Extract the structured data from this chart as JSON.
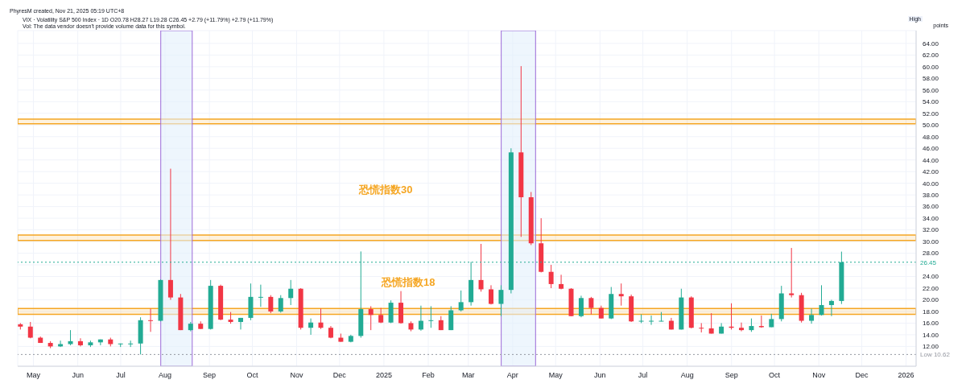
{
  "chart_data": {
    "type": "candlestick",
    "title": "VIX · Volatility S&P 500 Index · 1D  O20.78 H28.27 L19.28 C26.45 +2.79 (+11.79%) +2.79 (+11.79%)",
    "subtitle": "Vol: The data vendor doesn't provide volume data for this symbol.",
    "ylabel": "points",
    "x": [
      "2024-04-22",
      "2024-04-29",
      "2024-05-06",
      "2024-05-13",
      "2024-05-20",
      "2024-05-27",
      "2024-06-03",
      "2024-06-10",
      "2024-06-17",
      "2024-06-24",
      "2024-07-01",
      "2024-07-08",
      "2024-07-15",
      "2024-07-22",
      "2024-07-29",
      "2024-08-05",
      "2024-08-12",
      "2024-08-19",
      "2024-08-26",
      "2024-09-02",
      "2024-09-09",
      "2024-09-16",
      "2024-09-23",
      "2024-09-30",
      "2024-10-07",
      "2024-10-14",
      "2024-10-21",
      "2024-10-28",
      "2024-11-04",
      "2024-11-11",
      "2024-11-18",
      "2024-11-25",
      "2024-12-02",
      "2024-12-09",
      "2024-12-16",
      "2024-12-23",
      "2024-12-30",
      "2025-01-06",
      "2025-01-13",
      "2025-01-20",
      "2025-01-27",
      "2025-02-03",
      "2025-02-10",
      "2025-02-17",
      "2025-02-24",
      "2025-03-03",
      "2025-03-10",
      "2025-03-17",
      "2025-03-24",
      "2025-03-31",
      "2025-04-07",
      "2025-04-14",
      "2025-04-21",
      "2025-04-28",
      "2025-05-05",
      "2025-05-12",
      "2025-05-19",
      "2025-05-26",
      "2025-06-02",
      "2025-06-09",
      "2025-06-16",
      "2025-06-23",
      "2025-06-30",
      "2025-07-07",
      "2025-07-14",
      "2025-07-21",
      "2025-07-28",
      "2025-08-04",
      "2025-08-11",
      "2025-08-18",
      "2025-08-25",
      "2025-09-01",
      "2025-09-08",
      "2025-09-15",
      "2025-09-22",
      "2025-09-29",
      "2025-10-06",
      "2025-10-13",
      "2025-10-20",
      "2025-10-27",
      "2025-11-03",
      "2025-11-10",
      "2025-11-17"
    ],
    "ohlc": [
      [
        15.8,
        16.0,
        14.9,
        15.4
      ],
      [
        15.4,
        16.2,
        13.4,
        13.5
      ],
      [
        13.5,
        13.7,
        12.6,
        12.6
      ],
      [
        12.6,
        12.9,
        11.7,
        12.0
      ],
      [
        12.0,
        13.0,
        11.9,
        12.4
      ],
      [
        12.4,
        14.8,
        12.2,
        12.9
      ],
      [
        12.9,
        13.4,
        12.0,
        12.2
      ],
      [
        12.2,
        13.0,
        11.9,
        12.7
      ],
      [
        12.7,
        13.2,
        12.2,
        13.2
      ],
      [
        13.2,
        13.5,
        12.0,
        12.4
      ],
      [
        12.4,
        12.5,
        11.9,
        12.5
      ],
      [
        12.5,
        13.0,
        11.9,
        12.5
      ],
      [
        12.5,
        17.0,
        10.62,
        16.5
      ],
      [
        16.5,
        18.5,
        14.5,
        16.4
      ],
      [
        16.4,
        23.5,
        16.3,
        23.4
      ],
      [
        23.4,
        42.5,
        20.0,
        20.4
      ],
      [
        20.4,
        21.0,
        14.8,
        14.8
      ],
      [
        14.8,
        16.2,
        14.6,
        15.9
      ],
      [
        15.9,
        16.3,
        15.0,
        15.0
      ],
      [
        15.0,
        23.4,
        14.9,
        22.4
      ],
      [
        22.4,
        22.6,
        16.5,
        16.6
      ],
      [
        16.6,
        17.9,
        15.9,
        16.2
      ],
      [
        16.2,
        16.9,
        14.9,
        16.9
      ],
      [
        16.9,
        22.8,
        16.5,
        20.5
      ],
      [
        20.5,
        22.6,
        18.8,
        20.5
      ],
      [
        20.5,
        20.8,
        17.7,
        18.0
      ],
      [
        18.0,
        20.8,
        17.8,
        20.3
      ],
      [
        20.3,
        23.4,
        19.1,
        21.9
      ],
      [
        21.9,
        22.0,
        14.9,
        15.2
      ],
      [
        15.2,
        16.8,
        14.0,
        16.1
      ],
      [
        16.1,
        18.5,
        15.0,
        15.2
      ],
      [
        15.2,
        15.5,
        13.4,
        13.5
      ],
      [
        13.5,
        14.2,
        12.8,
        12.8
      ],
      [
        12.8,
        14.0,
        12.7,
        13.8
      ],
      [
        13.8,
        28.3,
        13.5,
        18.4
      ],
      [
        18.4,
        18.9,
        14.8,
        17.4
      ],
      [
        17.4,
        18.6,
        16.0,
        16.1
      ],
      [
        16.1,
        19.9,
        16.0,
        19.5
      ],
      [
        19.5,
        21.5,
        15.9,
        16.0
      ],
      [
        16.0,
        16.3,
        14.6,
        14.9
      ],
      [
        14.9,
        19.0,
        14.7,
        16.4
      ],
      [
        16.4,
        18.9,
        15.2,
        16.5
      ],
      [
        16.5,
        17.2,
        14.8,
        14.8
      ],
      [
        14.8,
        18.9,
        14.8,
        18.2
      ],
      [
        18.2,
        21.6,
        18.0,
        19.6
      ],
      [
        19.6,
        26.5,
        19.0,
        23.4
      ],
      [
        23.4,
        29.6,
        21.4,
        21.8
      ],
      [
        21.8,
        22.5,
        19.2,
        19.3
      ],
      [
        19.3,
        22.5,
        17.2,
        21.7
      ],
      [
        21.7,
        46.0,
        21.1,
        45.3
      ],
      [
        45.3,
        60.1,
        30.8,
        37.6
      ],
      [
        37.6,
        38.5,
        29.4,
        29.7
      ],
      [
        29.7,
        34.0,
        24.7,
        24.8
      ],
      [
        24.8,
        26.0,
        22.0,
        22.7
      ],
      [
        22.7,
        24.3,
        21.8,
        21.9
      ],
      [
        21.9,
        22.0,
        17.2,
        17.2
      ],
      [
        17.2,
        20.7,
        17.0,
        20.3
      ],
      [
        20.3,
        20.5,
        17.5,
        18.6
      ],
      [
        18.6,
        19.0,
        16.8,
        16.8
      ],
      [
        16.8,
        22.2,
        16.7,
        21.0
      ],
      [
        21.0,
        22.8,
        19.0,
        20.6
      ],
      [
        20.6,
        20.9,
        16.2,
        16.3
      ],
      [
        16.3,
        17.5,
        16.0,
        16.4
      ],
      [
        16.4,
        17.3,
        15.7,
        16.4
      ],
      [
        16.4,
        17.9,
        16.3,
        16.4
      ],
      [
        16.4,
        16.9,
        14.9,
        14.9
      ],
      [
        14.9,
        21.9,
        14.9,
        20.4
      ],
      [
        20.4,
        20.6,
        15.1,
        15.2
      ],
      [
        15.2,
        16.0,
        14.4,
        15.1
      ],
      [
        15.1,
        17.7,
        14.2,
        14.2
      ],
      [
        14.2,
        16.0,
        14.2,
        15.4
      ],
      [
        15.4,
        19.4,
        14.9,
        15.2
      ],
      [
        15.2,
        16.1,
        14.6,
        14.8
      ],
      [
        14.8,
        16.8,
        14.5,
        15.5
      ],
      [
        15.5,
        17.3,
        15.2,
        15.3
      ],
      [
        15.3,
        17.6,
        15.3,
        16.7
      ],
      [
        16.7,
        22.4,
        16.3,
        21.1
      ],
      [
        21.1,
        28.9,
        20.4,
        20.8
      ],
      [
        20.8,
        21.2,
        16.1,
        16.4
      ],
      [
        16.4,
        18.5,
        15.9,
        17.4
      ],
      [
        17.4,
        22.5,
        17.3,
        19.1
      ],
      [
        19.1,
        20.0,
        17.2,
        19.8
      ],
      [
        19.8,
        28.27,
        19.28,
        26.45
      ]
    ],
    "colors": [
      "#f23645",
      "#f23645",
      "#f23645",
      "#f23645",
      "#22ab94",
      "#22ab94",
      "#f23645",
      "#22ab94",
      "#22ab94",
      "#f23645",
      "#22ab94",
      "#22ab94",
      "#22ab94",
      "#f23645",
      "#22ab94",
      "#f23645",
      "#f23645",
      "#22ab94",
      "#f23645",
      "#22ab94",
      "#f23645",
      "#f23645",
      "#22ab94",
      "#22ab94",
      "#22ab94",
      "#f23645",
      "#22ab94",
      "#22ab94",
      "#f23645",
      "#22ab94",
      "#f23645",
      "#f23645",
      "#f23645",
      "#22ab94",
      "#22ab94",
      "#f23645",
      "#f23645",
      "#22ab94",
      "#f23645",
      "#f23645",
      "#22ab94",
      "#22ab94",
      "#f23645",
      "#22ab94",
      "#22ab94",
      "#22ab94",
      "#f23645",
      "#f23645",
      "#22ab94",
      "#22ab94",
      "#f23645",
      "#f23645",
      "#f23645",
      "#f23645",
      "#f23645",
      "#f23645",
      "#22ab94",
      "#f23645",
      "#f23645",
      "#22ab94",
      "#f23645",
      "#f23645",
      "#22ab94",
      "#22ab94",
      "#22ab94",
      "#f23645",
      "#22ab94",
      "#f23645",
      "#f23645",
      "#f23645",
      "#22ab94",
      "#f23645",
      "#f23645",
      "#22ab94",
      "#f23645",
      "#22ab94",
      "#22ab94",
      "#f23645",
      "#f23645",
      "#22ab94",
      "#22ab94",
      "#22ab94",
      "#22ab94"
    ],
    "xlim": [
      "2024-04-20",
      "2026-01-08"
    ],
    "xticks": [
      {
        "value": "2024-05-01",
        "label": "May"
      },
      {
        "value": "2024-06-01",
        "label": "Jun"
      },
      {
        "value": "2024-07-01",
        "label": "Jul"
      },
      {
        "value": "2024-08-01",
        "label": "Aug"
      },
      {
        "value": "2024-09-01",
        "label": "Sep"
      },
      {
        "value": "2024-10-01",
        "label": "Oct"
      },
      {
        "value": "2024-11-01",
        "label": "Nov"
      },
      {
        "value": "2024-12-01",
        "label": "Dec"
      },
      {
        "value": "2025-01-01",
        "label": "2025"
      },
      {
        "value": "2025-02-01",
        "label": "Feb"
      },
      {
        "value": "2025-03-01",
        "label": "Mar"
      },
      {
        "value": "2025-04-01",
        "label": "Apr"
      },
      {
        "value": "2025-05-01",
        "label": "May"
      },
      {
        "value": "2025-06-01",
        "label": "Jun"
      },
      {
        "value": "2025-07-01",
        "label": "Jul"
      },
      {
        "value": "2025-08-01",
        "label": "Aug"
      },
      {
        "value": "2025-09-01",
        "label": "Sep"
      },
      {
        "value": "2025-10-01",
        "label": "Oct"
      },
      {
        "value": "2025-11-01",
        "label": "Nov"
      },
      {
        "value": "2025-12-01",
        "label": "Dec"
      },
      {
        "value": "2026-01-01",
        "label": "2026"
      }
    ],
    "ylim": [
      8.6,
      66.2
    ],
    "yticks": [
      {
        "value": 12,
        "label": "12.00"
      },
      {
        "value": 14,
        "label": "14.00"
      },
      {
        "value": 16,
        "label": "16.00"
      },
      {
        "value": 18,
        "label": "18.00"
      },
      {
        "value": 20,
        "label": "20.00"
      },
      {
        "value": 22,
        "label": "22.00"
      },
      {
        "value": 24,
        "label": "24.00"
      },
      {
        "value": 26,
        "label": null
      },
      {
        "value": 28,
        "label": "28.00"
      },
      {
        "value": 30,
        "label": "30.00"
      },
      {
        "value": 32,
        "label": "32.00"
      },
      {
        "value": 34,
        "label": "34.00"
      },
      {
        "value": 36,
        "label": "36.00"
      },
      {
        "value": 38,
        "label": "38.00"
      },
      {
        "value": 40,
        "label": "40.00"
      },
      {
        "value": 42,
        "label": "42.00"
      },
      {
        "value": 44,
        "label": "44.00"
      },
      {
        "value": 46,
        "label": "46.00"
      },
      {
        "value": 48,
        "label": "48.00"
      },
      {
        "value": 50,
        "label": "50.00"
      },
      {
        "value": 52,
        "label": "52.00"
      },
      {
        "value": 54,
        "label": "54.00"
      },
      {
        "value": 56,
        "label": "56.00"
      },
      {
        "value": 58,
        "label": "58.00"
      },
      {
        "value": 60,
        "label": "60.00"
      },
      {
        "value": 62,
        "label": "62.00"
      },
      {
        "value": 64,
        "label": "64.00"
      }
    ],
    "grid": true,
    "ref_lines": [
      {
        "axis": "y",
        "value": 26.45,
        "label": "26.45",
        "color": "#22ab94",
        "line_style": "dotted"
      },
      {
        "axis": "y",
        "value": 10.62,
        "label": "Low 10.62",
        "color": "#9598a1",
        "line_style": "dotted"
      }
    ],
    "bands": [
      {
        "axis": "y",
        "from": 50.2,
        "to": 51.0,
        "color": "#f5a623"
      },
      {
        "axis": "y",
        "from": 30.2,
        "to": 31.1,
        "color": "#f5a623"
      },
      {
        "axis": "y",
        "from": 17.5,
        "to": 18.5,
        "color": "#f5a623"
      },
      {
        "axis": "x",
        "from": "2024-07-29",
        "to": "2024-08-20",
        "color": "#9c6ad8"
      },
      {
        "axis": "x",
        "from": "2025-03-24",
        "to": "2025-04-17",
        "color": "#9c6ad8"
      }
    ],
    "annotations": [
      "PhyresM created, Nov 21, 2025 05:19 UTC+8",
      "High",
      "恐慌指数30",
      "恐慌指数18"
    ]
  }
}
